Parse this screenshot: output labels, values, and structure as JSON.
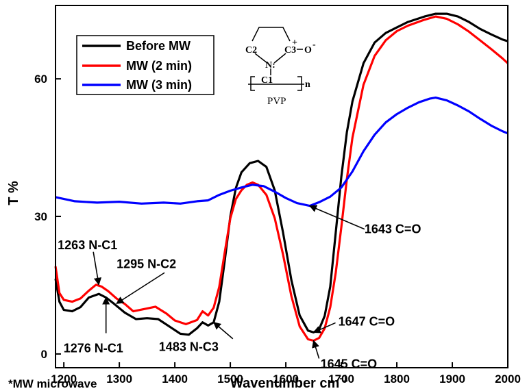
{
  "chart_data": {
    "type": "line",
    "xlabel": "Wavenumber cm",
    "xlabel_sup": "-1",
    "ylabel": "T %",
    "xlim": [
      1185,
      2000
    ],
    "ylim": [
      -3,
      76
    ],
    "xticks": [
      1200,
      1300,
      1400,
      1500,
      1600,
      1700,
      1800,
      1900,
      2000
    ],
    "yticks": [
      0,
      30,
      60
    ],
    "footnote": "*MW microwave",
    "series": [
      {
        "name": "Before MW",
        "color": "#000000",
        "points": [
          [
            1185,
            16.4
          ],
          [
            1192,
            11.4
          ],
          [
            1200,
            9.6
          ],
          [
            1215,
            9.3
          ],
          [
            1230,
            10.2
          ],
          [
            1245,
            12.3
          ],
          [
            1263,
            13.1
          ],
          [
            1276,
            12.3
          ],
          [
            1290,
            11.0
          ],
          [
            1310,
            9.0
          ],
          [
            1330,
            7.6
          ],
          [
            1350,
            7.8
          ],
          [
            1370,
            7.6
          ],
          [
            1390,
            6.0
          ],
          [
            1410,
            4.4
          ],
          [
            1425,
            4.2
          ],
          [
            1440,
            5.6
          ],
          [
            1450,
            6.9
          ],
          [
            1460,
            6.2
          ],
          [
            1470,
            6.9
          ],
          [
            1480,
            11.4
          ],
          [
            1490,
            20.4
          ],
          [
            1500,
            30.0
          ],
          [
            1510,
            36.2
          ],
          [
            1520,
            39.6
          ],
          [
            1535,
            41.6
          ],
          [
            1550,
            42.1
          ],
          [
            1565,
            40.8
          ],
          [
            1580,
            35.7
          ],
          [
            1595,
            26.5
          ],
          [
            1610,
            16.1
          ],
          [
            1625,
            8.4
          ],
          [
            1640,
            5.1
          ],
          [
            1650,
            4.7
          ],
          [
            1660,
            5.4
          ],
          [
            1670,
            8.3
          ],
          [
            1680,
            14.7
          ],
          [
            1690,
            26.6
          ],
          [
            1700,
            38.7
          ],
          [
            1710,
            48.4
          ],
          [
            1720,
            55.1
          ],
          [
            1740,
            63.4
          ],
          [
            1760,
            67.9
          ],
          [
            1780,
            70.0
          ],
          [
            1800,
            71.2
          ],
          [
            1820,
            72.4
          ],
          [
            1850,
            73.6
          ],
          [
            1870,
            74.2
          ],
          [
            1890,
            74.2
          ],
          [
            1910,
            73.6
          ],
          [
            1930,
            72.4
          ],
          [
            1950,
            70.9
          ],
          [
            1970,
            69.7
          ],
          [
            1990,
            68.6
          ],
          [
            2000,
            68.2
          ]
        ]
      },
      {
        "name": "MW (2 min)",
        "color": "#ff0000",
        "points": [
          [
            1185,
            19.1
          ],
          [
            1192,
            13.3
          ],
          [
            1200,
            11.8
          ],
          [
            1215,
            11.4
          ],
          [
            1230,
            12.1
          ],
          [
            1245,
            13.8
          ],
          [
            1258,
            15.1
          ],
          [
            1268,
            14.7
          ],
          [
            1280,
            13.7
          ],
          [
            1295,
            12.1
          ],
          [
            1310,
            10.9
          ],
          [
            1325,
            9.3
          ],
          [
            1345,
            9.8
          ],
          [
            1365,
            10.3
          ],
          [
            1385,
            8.8
          ],
          [
            1400,
            7.3
          ],
          [
            1420,
            6.5
          ],
          [
            1440,
            7.4
          ],
          [
            1450,
            9.3
          ],
          [
            1460,
            8.4
          ],
          [
            1470,
            10.1
          ],
          [
            1480,
            14.6
          ],
          [
            1490,
            22.2
          ],
          [
            1500,
            29.6
          ],
          [
            1510,
            33.8
          ],
          [
            1520,
            35.7
          ],
          [
            1530,
            36.9
          ],
          [
            1540,
            37.4
          ],
          [
            1550,
            36.9
          ],
          [
            1565,
            34.7
          ],
          [
            1580,
            29.6
          ],
          [
            1595,
            21.7
          ],
          [
            1610,
            12.6
          ],
          [
            1625,
            6.0
          ],
          [
            1640,
            3.2
          ],
          [
            1650,
            2.9
          ],
          [
            1660,
            3.5
          ],
          [
            1670,
            5.6
          ],
          [
            1680,
            10.2
          ],
          [
            1690,
            17.8
          ],
          [
            1700,
            27.7
          ],
          [
            1710,
            38.2
          ],
          [
            1720,
            47.2
          ],
          [
            1740,
            58.7
          ],
          [
            1760,
            65.0
          ],
          [
            1780,
            68.4
          ],
          [
            1800,
            70.4
          ],
          [
            1820,
            71.6
          ],
          [
            1850,
            72.9
          ],
          [
            1870,
            73.6
          ],
          [
            1890,
            73.1
          ],
          [
            1910,
            71.9
          ],
          [
            1930,
            70.3
          ],
          [
            1950,
            68.4
          ],
          [
            1970,
            66.5
          ],
          [
            1990,
            64.5
          ],
          [
            2000,
            63.4
          ]
        ]
      },
      {
        "name": "MW (3 min)",
        "color": "#0000ff",
        "points": [
          [
            1185,
            34.2
          ],
          [
            1220,
            33.3
          ],
          [
            1260,
            33.0
          ],
          [
            1300,
            33.2
          ],
          [
            1340,
            32.8
          ],
          [
            1380,
            33.0
          ],
          [
            1410,
            32.8
          ],
          [
            1440,
            33.3
          ],
          [
            1460,
            33.5
          ],
          [
            1480,
            34.7
          ],
          [
            1500,
            35.6
          ],
          [
            1520,
            36.3
          ],
          [
            1540,
            36.9
          ],
          [
            1560,
            36.6
          ],
          [
            1580,
            35.4
          ],
          [
            1600,
            34.0
          ],
          [
            1620,
            32.9
          ],
          [
            1643,
            32.3
          ],
          [
            1660,
            33.1
          ],
          [
            1680,
            34.3
          ],
          [
            1700,
            36.3
          ],
          [
            1720,
            39.8
          ],
          [
            1740,
            44.2
          ],
          [
            1760,
            47.8
          ],
          [
            1780,
            50.5
          ],
          [
            1800,
            52.3
          ],
          [
            1820,
            53.7
          ],
          [
            1840,
            54.9
          ],
          [
            1860,
            55.7
          ],
          [
            1870,
            55.9
          ],
          [
            1890,
            55.3
          ],
          [
            1910,
            54.2
          ],
          [
            1930,
            52.9
          ],
          [
            1950,
            51.3
          ],
          [
            1970,
            49.8
          ],
          [
            1990,
            48.6
          ],
          [
            2000,
            48.1
          ]
        ]
      }
    ],
    "annotations": [
      {
        "text": "1263 N-C1",
        "x": 1263,
        "y": 15.1,
        "dir": "down"
      },
      {
        "text": "1276 N-C1",
        "x": 1276,
        "y": 12.3,
        "dir": "up"
      },
      {
        "text": "1295 N-C2",
        "x": 1295,
        "y": 11.0,
        "dir": "diag"
      },
      {
        "text": "1483 N-C3",
        "x": 1470,
        "y": 6.9,
        "dir": "up"
      },
      {
        "text": "1643 C=O",
        "x": 1643,
        "y": 32.3,
        "dir": "left"
      },
      {
        "text": "1647 C=O",
        "x": 1650,
        "y": 4.7,
        "dir": "left"
      },
      {
        "text": "1645 C=O",
        "x": 1650,
        "y": 2.9,
        "dir": "left"
      }
    ],
    "legend_position": "top-left",
    "inset": {
      "label": "PVP",
      "atoms": [
        "C2",
        "C3",
        "N:",
        "C1"
      ],
      "charge": "+",
      "oxygen": "O",
      "oxygen_charge": "-",
      "subscript": "n"
    }
  }
}
